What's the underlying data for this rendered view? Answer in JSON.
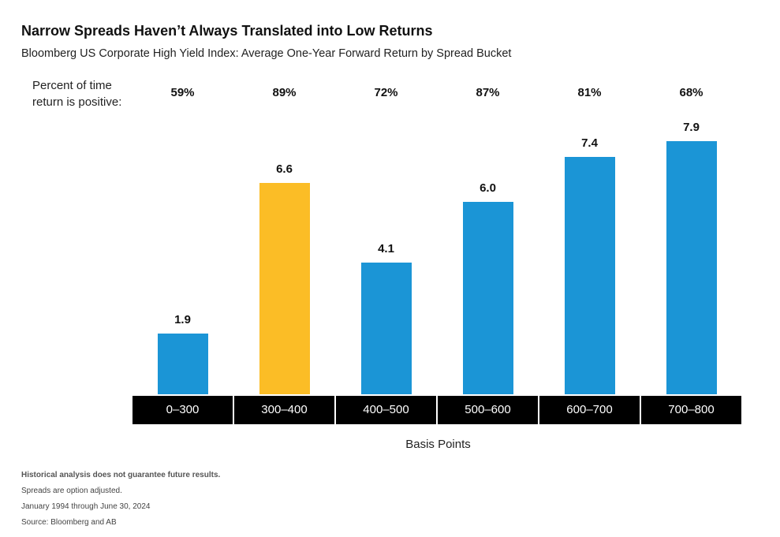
{
  "title": "Narrow Spreads Haven’t Always Translated into Low Returns",
  "subtitle": "Bloomberg US Corporate High Yield Index: Average One-Year Forward Return by Spread Bucket",
  "positive_label_line1": "Percent of time",
  "positive_label_line2": "return is positive:",
  "chart_data": {
    "type": "bar",
    "categories": [
      "0–300",
      "300–400",
      "400–500",
      "500–600",
      "600–700",
      "700–800"
    ],
    "values": [
      1.9,
      6.6,
      4.1,
      6.0,
      7.4,
      7.9
    ],
    "value_labels": [
      "1.9",
      "6.6",
      "4.1",
      "6.0",
      "7.4",
      "7.9"
    ],
    "percent_positive": [
      "59%",
      "89%",
      "72%",
      "87%",
      "81%",
      "68%"
    ],
    "xlabel": "Basis Points",
    "ylabel": "",
    "ylim": [
      0,
      7.9
    ],
    "bar_colors": [
      "#1b95d6",
      "#fbbd26",
      "#1b95d6",
      "#1b95d6",
      "#1b95d6",
      "#1b95d6"
    ],
    "grid": false
  },
  "notes": [
    "Historical analysis does not guarantee future results.",
    "Spreads are option adjusted.",
    "January 1994 through June 30, 2024",
    "Source: Bloomberg and AB"
  ]
}
